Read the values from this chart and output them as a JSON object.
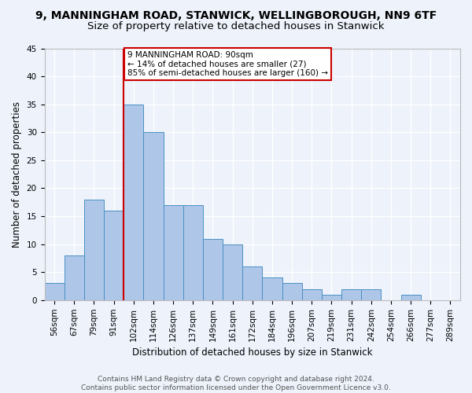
{
  "title": "9, MANNINGHAM ROAD, STANWICK, WELLINGBOROUGH, NN9 6TF",
  "subtitle": "Size of property relative to detached houses in Stanwick",
  "xlabel": "Distribution of detached houses by size in Stanwick",
  "ylabel": "Number of detached properties",
  "bar_values": [
    3,
    8,
    18,
    16,
    35,
    30,
    17,
    17,
    11,
    10,
    6,
    4,
    3,
    2,
    1,
    2,
    2,
    0,
    1,
    0,
    0
  ],
  "x_tick_labels": [
    "56sqm",
    "67sqm",
    "79sqm",
    "91sqm",
    "102sqm",
    "114sqm",
    "126sqm",
    "137sqm",
    "149sqm",
    "161sqm",
    "172sqm",
    "184sqm",
    "196sqm",
    "207sqm",
    "219sqm",
    "231sqm",
    "242sqm",
    "254sqm",
    "266sqm",
    "277sqm",
    "289sqm"
  ],
  "bar_color": "#aec6e8",
  "bar_edge_color": "#4a90c4",
  "vline_x": 3.5,
  "vline_color": "#cc0000",
  "annotation_text": "9 MANNINGHAM ROAD: 90sqm\n← 14% of detached houses are smaller (27)\n85% of semi-detached houses are larger (160) →",
  "annotation_box_color": "#ffffff",
  "annotation_box_edge": "#cc0000",
  "ylim": [
    0,
    45
  ],
  "yticks": [
    0,
    5,
    10,
    15,
    20,
    25,
    30,
    35,
    40,
    45
  ],
  "footer_text": "Contains HM Land Registry data © Crown copyright and database right 2024.\nContains public sector information licensed under the Open Government Licence v3.0.",
  "bg_color": "#edf2fb",
  "grid_color": "#ffffff",
  "title_fontsize": 10,
  "subtitle_fontsize": 9.5,
  "axis_label_fontsize": 8.5,
  "tick_fontsize": 7.5,
  "footer_fontsize": 6.5
}
